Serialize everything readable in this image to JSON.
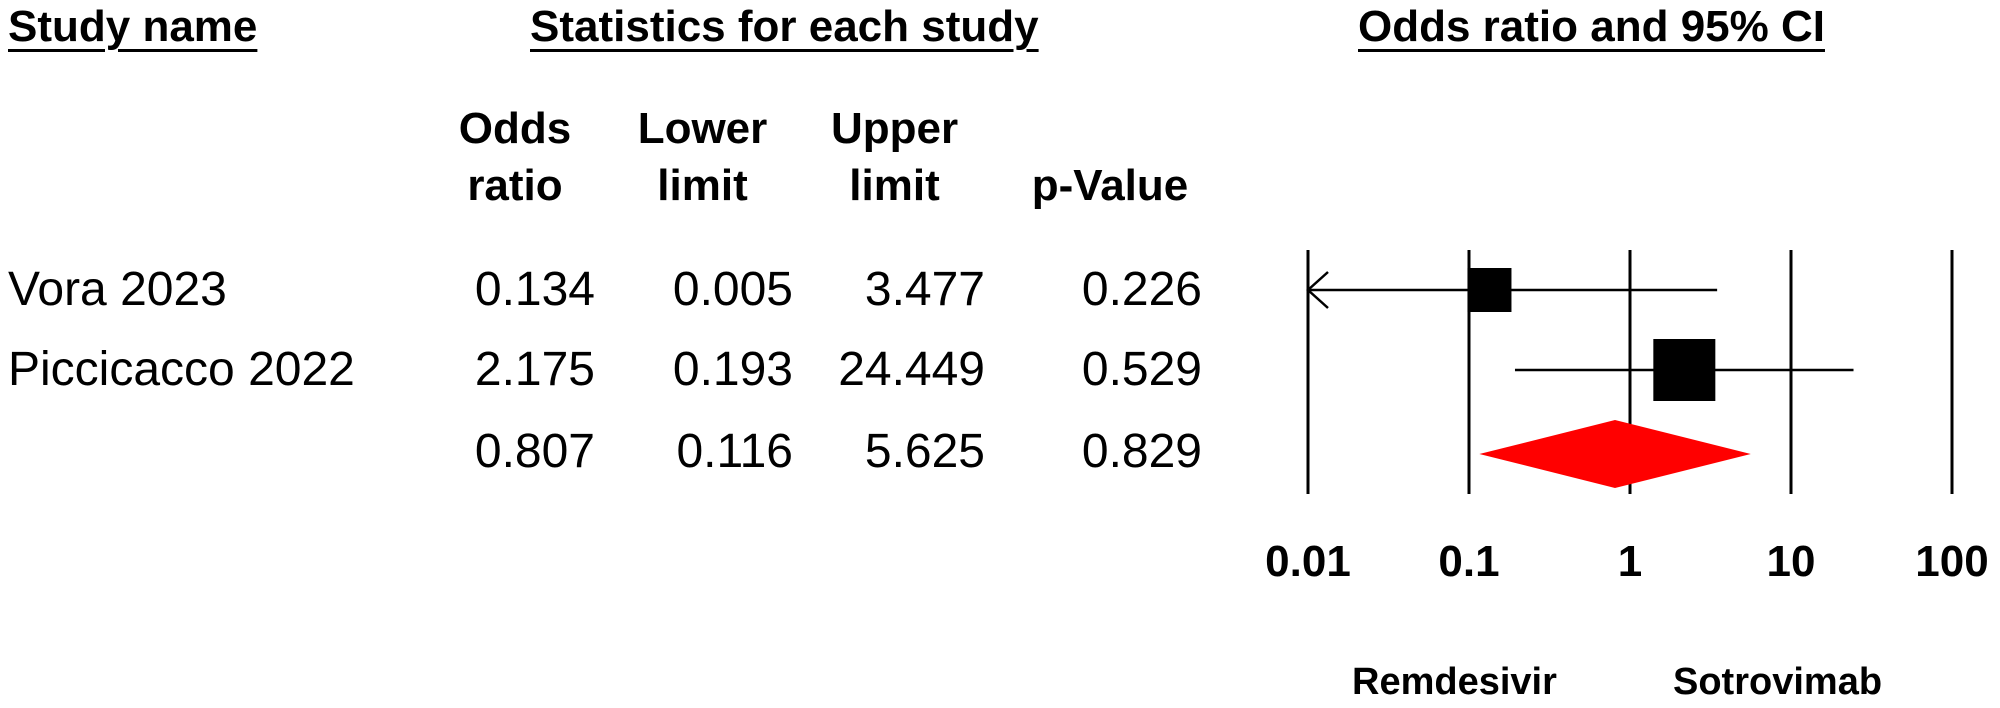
{
  "headers": {
    "study_name": "Study name",
    "statistics": "Statistics for each study",
    "plot": "Odds ratio and 95% CI"
  },
  "columns": {
    "odds_ratio": [
      "Odds",
      "ratio"
    ],
    "lower_limit": [
      "Lower",
      "limit"
    ],
    "upper_limit": [
      "Upper",
      "limit"
    ],
    "p_value": "p-Value"
  },
  "rows": [
    {
      "study": "Vora 2023",
      "odds_ratio": "0.134",
      "lower": "0.005",
      "upper": "3.477",
      "p": "0.226"
    },
    {
      "study": "Piccicacco 2022",
      "odds_ratio": "2.175",
      "lower": "0.193",
      "upper": "24.449",
      "p": "0.529"
    },
    {
      "study": "",
      "odds_ratio": "0.807",
      "lower": "0.116",
      "upper": "5.625",
      "p": "0.829"
    }
  ],
  "favours": {
    "left": "Remdesivir",
    "right": "Sotrovimab"
  },
  "chart_data": {
    "type": "forest",
    "title": "Odds ratio and 95% CI",
    "x_scale": "log",
    "xlim": [
      0.01,
      100
    ],
    "x_ticks": [
      0.01,
      0.1,
      1,
      10,
      100
    ],
    "x_tick_labels": [
      "0.01",
      "0.1",
      "1",
      "10",
      "100"
    ],
    "grid": true,
    "studies": [
      {
        "name": "Vora 2023",
        "or": 0.134,
        "lower": 0.005,
        "upper": 3.477,
        "marker": "square",
        "weight": "small",
        "lower_clipped": true
      },
      {
        "name": "Piccicacco 2022",
        "or": 2.175,
        "lower": 0.193,
        "upper": 24.449,
        "marker": "square",
        "weight": "large"
      }
    ],
    "summary": {
      "or": 0.807,
      "lower": 0.116,
      "upper": 5.625,
      "marker": "diamond",
      "color": "#ff0000"
    },
    "square_color": "#000000"
  }
}
